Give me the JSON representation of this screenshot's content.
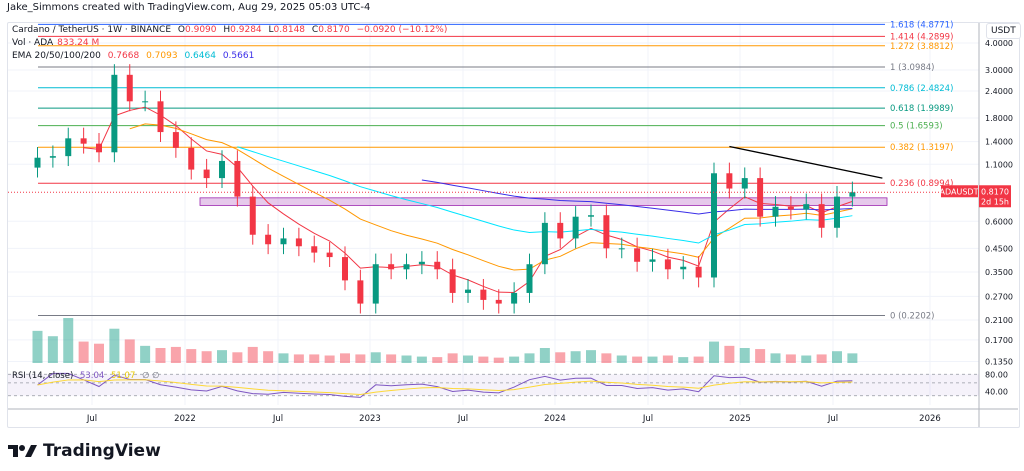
{
  "credit": "Jake_Simmons created with TradingView.com, Aug 29, 2025 05:03 UTC-4",
  "legend": {
    "symbol": "Cardano / TetherUS · 1W · BINANCE",
    "open_label": "O",
    "open": "0.9090",
    "high_label": "H",
    "high": "0.9284",
    "low_label": "L",
    "low": "0.8148",
    "close_label": "C",
    "close": "0.8170",
    "change": "−0.0920 (−10.12%)",
    "vol_label": "Vol · ADA",
    "vol": "833.24 M",
    "ema_label": "EMA 20/50/100/200",
    "ema": [
      "0.7668",
      "0.7093",
      "0.6464",
      "0.5661"
    ],
    "ema_colors": [
      "#f23645",
      "#ff9800",
      "#00e5ff",
      "#3a2ee8"
    ],
    "rsi_label": "RSI (14, close)",
    "rsi": "53.04",
    "rsi_ma": "51.07",
    "rsi_extra": "∅ ∅"
  },
  "price_axis": {
    "currency": "USDT",
    "ticks": [
      "4.0000",
      "3.0000",
      "2.4000",
      "1.8000",
      "1.4000",
      "1.1000",
      "0.6000",
      "0.4500",
      "0.3500",
      "0.2700",
      "0.2100",
      "0.1700",
      "0.1350"
    ],
    "rsi_ticks": [
      "80.00",
      "40.00"
    ],
    "last_label": "ADAUSDT",
    "last_price": "0.8170",
    "countdown": "2d 15h",
    "scale": "log"
  },
  "time_axis": [
    "Jul",
    "2022",
    "Jul",
    "2023",
    "Jul",
    "2024",
    "Jul",
    "2025",
    "Jul",
    "2026"
  ],
  "fib_levels": [
    {
      "label": "1.618 (4.8771)",
      "price": 4.8771,
      "color": "#2962ff"
    },
    {
      "label": "1.414 (4.2899)",
      "price": 4.2899,
      "color": "#f23645"
    },
    {
      "label": "1.272 (3.8812)",
      "price": 3.8812,
      "color": "#ff9800"
    },
    {
      "label": "1 (3.0984)",
      "price": 3.0984,
      "color": "#787b86"
    },
    {
      "label": "0.786 (2.4824)",
      "price": 2.4824,
      "color": "#00bcd4"
    },
    {
      "label": "0.618 (1.9989)",
      "price": 1.9989,
      "color": "#089981"
    },
    {
      "label": "0.5 (1.6593)",
      "price": 1.6593,
      "color": "#4caf50"
    },
    {
      "label": "0.382 (1.3197)",
      "price": 1.3197,
      "color": "#ff9800"
    },
    {
      "label": "0.236 (0.8994)",
      "price": 0.8994,
      "color": "#f23645"
    },
    {
      "label": "0 (0.2202)",
      "price": 0.2202,
      "color": "#787b86"
    }
  ],
  "colors": {
    "up": "#089981",
    "down": "#f23645",
    "zone": "#ce93d8",
    "trendline": "#000000",
    "rsi": "#7e57c2",
    "rsi_ma": "#fdd835"
  },
  "chart_data": {
    "type": "candlestick",
    "scale": "log",
    "zone": [
      0.71,
      0.77
    ],
    "trendline": [
      [
        "2024-12",
        1.33
      ],
      [
        "2025-08",
        0.95
      ]
    ],
    "dates": [
      "2021-03",
      "2021-04",
      "2021-05",
      "2021-06",
      "2021-07",
      "2021-08",
      "2021-09",
      "2021-10",
      "2021-11",
      "2021-12",
      "2022-01",
      "2022-02",
      "2022-03",
      "2022-04",
      "2022-05",
      "2022-06",
      "2022-07",
      "2022-08",
      "2022-09",
      "2022-10",
      "2022-11",
      "2022-12",
      "2023-01",
      "2023-02",
      "2023-03",
      "2023-04",
      "2023-05",
      "2023-06",
      "2023-07",
      "2023-08",
      "2023-09",
      "2023-10",
      "2023-11",
      "2023-12",
      "2024-01",
      "2024-02",
      "2024-03",
      "2024-04",
      "2024-05",
      "2024-06",
      "2024-07",
      "2024-08",
      "2024-09",
      "2024-10",
      "2024-11",
      "2024-12",
      "2025-01",
      "2025-02",
      "2025-03",
      "2025-04",
      "2025-05",
      "2025-06",
      "2025-07",
      "2025-08"
    ],
    "close": [
      1.18,
      1.2,
      1.45,
      1.37,
      1.25,
      2.85,
      2.15,
      2.15,
      1.55,
      1.31,
      1.04,
      0.95,
      1.14,
      0.78,
      0.52,
      0.47,
      0.5,
      0.46,
      0.43,
      0.41,
      0.32,
      0.25,
      0.38,
      0.36,
      0.38,
      0.39,
      0.36,
      0.28,
      0.29,
      0.26,
      0.25,
      0.28,
      0.38,
      0.59,
      0.5,
      0.63,
      0.64,
      0.45,
      0.45,
      0.39,
      0.4,
      0.36,
      0.37,
      0.33,
      1.0,
      0.85,
      0.95,
      0.63,
      0.7,
      0.68,
      0.72,
      0.56,
      0.78,
      0.817
    ],
    "volume": [
      300,
      250,
      420,
      200,
      180,
      320,
      220,
      160,
      140,
      150,
      130,
      110,
      120,
      100,
      150,
      110,
      90,
      80,
      80,
      70,
      90,
      80,
      100,
      80,
      70,
      60,
      55,
      90,
      70,
      60,
      50,
      60,
      90,
      140,
      100,
      110,
      120,
      90,
      70,
      60,
      60,
      70,
      55,
      60,
      200,
      160,
      140,
      130,
      90,
      80,
      70,
      80,
      110,
      90
    ]
  }
}
